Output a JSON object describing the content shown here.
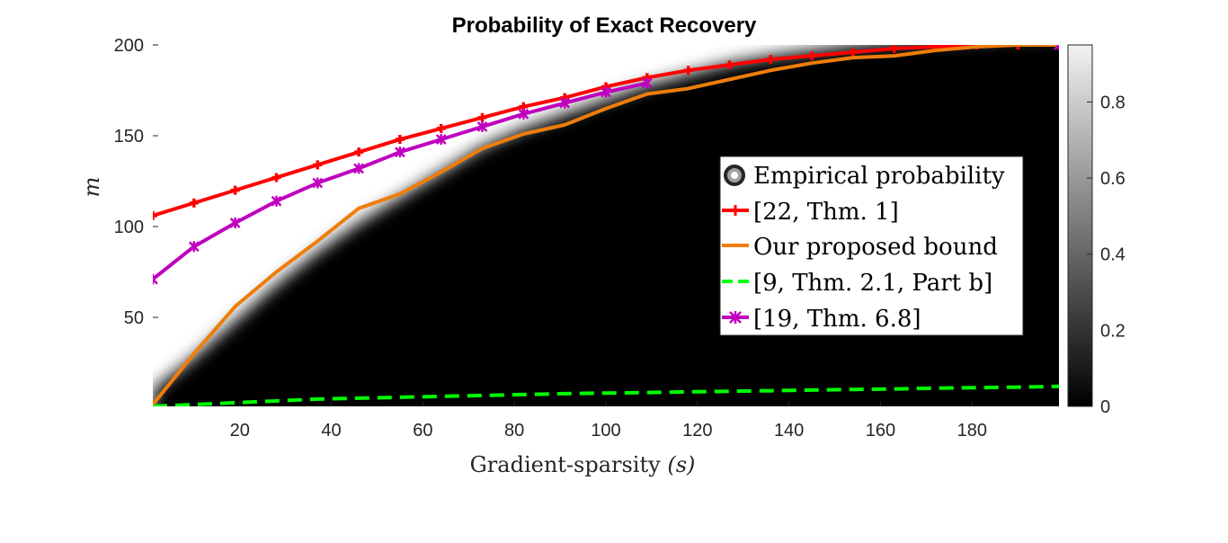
{
  "chart_data": {
    "type": "line",
    "title": "Probability of Exact Recovery",
    "xlabel": "Gradient-sparsity",
    "xlabel_symbol": "(s)",
    "ylabel": "m",
    "xlim": [
      1,
      199
    ],
    "ylim": [
      1,
      200
    ],
    "xticks": [
      "20",
      "40",
      "60",
      "80",
      "100",
      "120",
      "140",
      "160",
      "180"
    ],
    "xtick_values": [
      20,
      40,
      60,
      80,
      100,
      120,
      140,
      160,
      180
    ],
    "yticks": [
      "50",
      "100",
      "150",
      "200"
    ],
    "ytick_values": [
      50,
      100,
      150,
      200
    ],
    "colorbar": {
      "range": [
        0,
        0.95
      ],
      "ticks": [
        "0",
        "0.2",
        "0.4",
        "0.6",
        "0.8"
      ],
      "tick_values": [
        0,
        0.2,
        0.4,
        0.6,
        0.8
      ]
    },
    "heatmap": {
      "name": "Empirical probability",
      "description_value": "~1 above the transition curve, ~0 below",
      "transition_s": [
        1,
        10,
        19,
        28,
        37,
        46,
        55,
        64,
        73,
        82,
        91,
        100,
        109,
        118,
        127,
        136,
        145,
        154,
        163,
        172,
        181,
        190,
        199
      ],
      "transition_m": [
        4,
        22,
        42,
        62,
        80,
        96,
        110,
        124,
        138,
        148,
        156,
        164,
        172,
        178,
        184,
        188,
        191,
        194,
        196,
        197,
        198,
        199,
        200
      ]
    },
    "series": [
      {
        "name": "[22, Thm. 1]",
        "color": "#ff0000",
        "marker": "plus",
        "x": [
          1,
          10,
          19,
          28,
          37,
          46,
          55,
          64,
          73,
          82,
          91,
          100,
          109,
          118,
          127,
          136,
          145,
          154,
          163,
          172,
          181,
          190,
          199
        ],
        "y": [
          106,
          113,
          120,
          127,
          134,
          141,
          148,
          154,
          160,
          166,
          171,
          177,
          182,
          186,
          189,
          192,
          194,
          196,
          198,
          199,
          200,
          200,
          200
        ]
      },
      {
        "name": "Our proposed bound",
        "color": "#ee7d0a",
        "marker": "none",
        "x": [
          1,
          10,
          19,
          28,
          37,
          46,
          55,
          64,
          73,
          82,
          91,
          100,
          109,
          118,
          127,
          136,
          145,
          154,
          163,
          172,
          181,
          190,
          199
        ],
        "y": [
          2,
          30,
          56,
          75,
          92,
          110,
          118,
          130,
          143,
          151,
          156,
          165,
          173,
          176,
          181,
          186,
          190,
          193,
          194,
          197,
          199,
          200,
          200
        ]
      },
      {
        "name": "[9, Thm. 2.1, Part b]",
        "color": "#00ff00",
        "marker": "none",
        "dashed": true,
        "x": [
          1,
          10,
          19,
          28,
          37,
          46,
          55,
          64,
          73,
          82,
          91,
          100,
          109,
          118,
          127,
          136,
          145,
          154,
          163,
          172,
          181,
          190,
          199
        ],
        "y": [
          1,
          2,
          3,
          4,
          5,
          5.5,
          6,
          6.5,
          7,
          7.5,
          8,
          8.3,
          8.6,
          9,
          9.3,
          9.6,
          10,
          10.3,
          10.6,
          11,
          11.3,
          11.6,
          12
        ]
      },
      {
        "name": "[19, Thm. 6.8]",
        "color": "#bf00bf",
        "marker": "star",
        "x": [
          1,
          10,
          19,
          28,
          37,
          46,
          55,
          64,
          73,
          82,
          91,
          100,
          109
        ],
        "y": [
          71,
          89,
          102,
          114,
          124,
          132,
          141,
          148,
          155,
          162,
          168,
          174,
          179
        ]
      },
      {
        "name": "[19, Thm. 6.8]",
        "color": "#bf00bf",
        "marker": "star",
        "x": [
          199
        ],
        "y": [
          200
        ]
      }
    ],
    "legend": {
      "placement": "center-right",
      "entries": [
        "Empirical probability",
        "[22, Thm. 1]",
        "Our proposed bound",
        "[9, Thm. 2.1, Part b]",
        "[19, Thm. 6.8]"
      ]
    }
  }
}
